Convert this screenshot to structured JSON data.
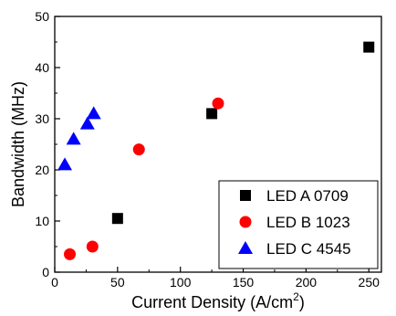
{
  "chart_data": {
    "type": "scatter",
    "xlabel": "Current Density (A/cm",
    "xlabel_superscript": "2",
    "xlabel_suffix": ")",
    "ylabel": "Bandwidth (MHz)",
    "xlim": [
      0,
      260
    ],
    "ylim": [
      0,
      50
    ],
    "xticks": [
      0,
      50,
      100,
      150,
      200,
      250
    ],
    "yticks": [
      0,
      10,
      20,
      30,
      40,
      50
    ],
    "grid": false,
    "legend_position": "bottom-right",
    "series": [
      {
        "name": "LED A 0709",
        "marker": "square",
        "color": "#000000",
        "points": [
          [
            50,
            10.5
          ],
          [
            125,
            31
          ],
          [
            250,
            44
          ]
        ]
      },
      {
        "name": "LED B 1023",
        "marker": "circle",
        "color": "#ff0000",
        "points": [
          [
            12,
            3.5
          ],
          [
            30,
            5
          ],
          [
            67,
            24
          ],
          [
            130,
            33
          ]
        ]
      },
      {
        "name": "LED C 4545",
        "marker": "triangle",
        "color": "#0000ff",
        "points": [
          [
            8,
            21
          ],
          [
            15,
            26
          ],
          [
            26,
            29
          ],
          [
            31,
            31
          ]
        ]
      }
    ]
  }
}
